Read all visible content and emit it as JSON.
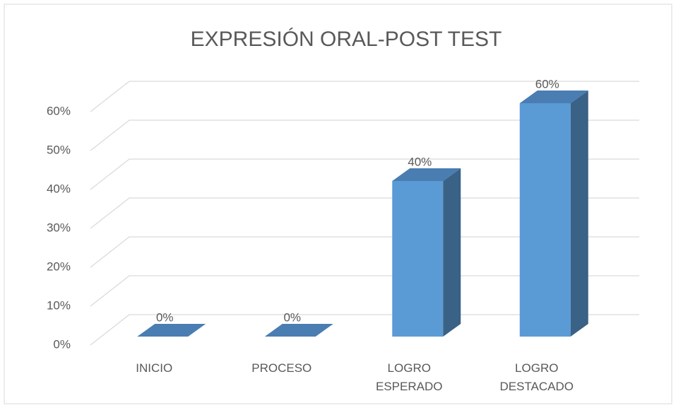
{
  "chart_data": {
    "type": "bar3d",
    "title": "EXPRESIÓN ORAL-POST TEST",
    "categories": [
      "INICIO",
      "PROCESO",
      "LOGRO ESPERADO",
      "LOGRO DESTACADO"
    ],
    "values": [
      0,
      0,
      40,
      60
    ],
    "value_labels": [
      "0%",
      "0%",
      "40%",
      "60%"
    ],
    "color": "#5b9bd5",
    "ylim": [
      0,
      60
    ],
    "yticks": [
      {
        "value": 0,
        "label": "0%"
      },
      {
        "value": 10,
        "label": "10%"
      },
      {
        "value": 20,
        "label": "20%"
      },
      {
        "value": 30,
        "label": "30%"
      },
      {
        "value": 40,
        "label": "40%"
      },
      {
        "value": 50,
        "label": "50%"
      },
      {
        "value": 60,
        "label": "60%"
      }
    ],
    "grid": true
  }
}
